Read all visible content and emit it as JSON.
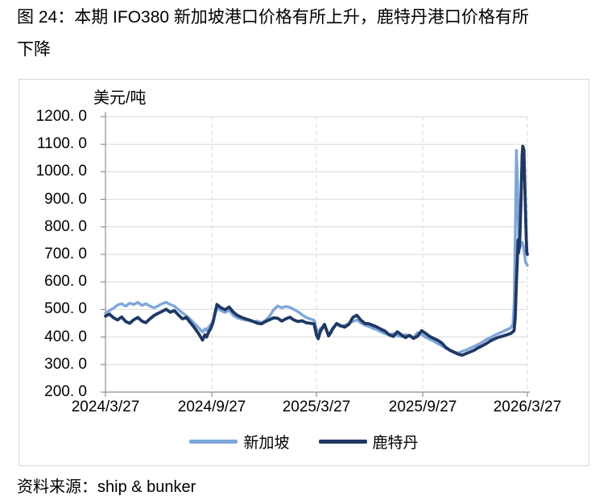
{
  "figure": {
    "title_line1": "图 24：本期 IFO380 新加坡港口价格有所上升，鹿特丹港口价格有所",
    "title_line2": "下降",
    "source": "资料来源：ship & bunker"
  },
  "chart_data": {
    "type": "line",
    "title": "本期 IFO380 新加坡港口价格有所上升，鹿特丹港口价格有所下降",
    "ylabel": "美元/吨",
    "xlabel": "",
    "ylim": [
      200,
      1200
    ],
    "y_tick_values": [
      200,
      300,
      400,
      500,
      600,
      700,
      800,
      900,
      1000,
      1100,
      1200
    ],
    "y_tick_labels": [
      "200. 0",
      "300. 0",
      "400. 0",
      "500. 0",
      "600. 0",
      "700. 0",
      "800. 0",
      "900. 0",
      "1000. 0",
      "1100. 0",
      "1200. 0"
    ],
    "x_tick_days": [
      0,
      184,
      365,
      549,
      730
    ],
    "x_tick_labels": [
      "2024/3/27",
      "2024/9/27",
      "2025/3/27",
      "2025/9/27",
      "2026/3/27"
    ],
    "x_range_days": [
      0,
      730
    ],
    "grid": {
      "horizontal": true,
      "vertical": "dashed"
    },
    "legend_position": "bottom",
    "colors": {
      "grid": "#d9d9d9",
      "axis": "#8f8f8f",
      "text": "#000000"
    },
    "series": [
      {
        "name": "新加坡",
        "color": "#7EA6D8",
        "width": 3.4,
        "points": [
          [
            0,
            487
          ],
          [
            7,
            496
          ],
          [
            14,
            505
          ],
          [
            21,
            516
          ],
          [
            28,
            521
          ],
          [
            35,
            512
          ],
          [
            42,
            523
          ],
          [
            49,
            518
          ],
          [
            56,
            526
          ],
          [
            63,
            515
          ],
          [
            70,
            521
          ],
          [
            77,
            512
          ],
          [
            84,
            506
          ],
          [
            91,
            513
          ],
          [
            98,
            521
          ],
          [
            105,
            526
          ],
          [
            112,
            518
          ],
          [
            119,
            512
          ],
          [
            126,
            500
          ],
          [
            133,
            488
          ],
          [
            140,
            477
          ],
          [
            147,
            464
          ],
          [
            154,
            449
          ],
          [
            161,
            434
          ],
          [
            168,
            418
          ],
          [
            172,
            430
          ],
          [
            175,
            424
          ],
          [
            179,
            438
          ],
          [
            182,
            444
          ],
          [
            186,
            458
          ],
          [
            190,
            485
          ],
          [
            193,
            506
          ],
          [
            200,
            496
          ],
          [
            207,
            489
          ],
          [
            214,
            497
          ],
          [
            221,
            479
          ],
          [
            228,
            469
          ],
          [
            235,
            465
          ],
          [
            242,
            462
          ],
          [
            249,
            459
          ],
          [
            256,
            455
          ],
          [
            263,
            458
          ],
          [
            270,
            452
          ],
          [
            277,
            461
          ],
          [
            284,
            476
          ],
          [
            291,
            499
          ],
          [
            298,
            513
          ],
          [
            305,
            506
          ],
          [
            312,
            511
          ],
          [
            319,
            508
          ],
          [
            326,
            500
          ],
          [
            333,
            492
          ],
          [
            340,
            481
          ],
          [
            347,
            471
          ],
          [
            354,
            466
          ],
          [
            361,
            461
          ],
          [
            365,
            430
          ],
          [
            368,
            415
          ],
          [
            372,
            431
          ],
          [
            379,
            441
          ],
          [
            386,
            409
          ],
          [
            390,
            420
          ],
          [
            393,
            433
          ],
          [
            400,
            446
          ],
          [
            407,
            438
          ],
          [
            414,
            443
          ],
          [
            421,
            449
          ],
          [
            428,
            456
          ],
          [
            435,
            462
          ],
          [
            442,
            451
          ],
          [
            449,
            443
          ],
          [
            456,
            438
          ],
          [
            463,
            431
          ],
          [
            470,
            426
          ],
          [
            477,
            418
          ],
          [
            484,
            412
          ],
          [
            491,
            408
          ],
          [
            498,
            413
          ],
          [
            505,
            405
          ],
          [
            512,
            401
          ],
          [
            519,
            409
          ],
          [
            526,
            403
          ],
          [
            533,
            398
          ],
          [
            540,
            416
          ],
          [
            547,
            409
          ],
          [
            554,
            399
          ],
          [
            561,
            392
          ],
          [
            568,
            385
          ],
          [
            575,
            376
          ],
          [
            582,
            368
          ],
          [
            589,
            359
          ],
          [
            596,
            352
          ],
          [
            603,
            346
          ],
          [
            610,
            342
          ],
          [
            617,
            348
          ],
          [
            624,
            353
          ],
          [
            631,
            359
          ],
          [
            638,
            366
          ],
          [
            645,
            373
          ],
          [
            652,
            381
          ],
          [
            659,
            391
          ],
          [
            666,
            398
          ],
          [
            673,
            406
          ],
          [
            680,
            413
          ],
          [
            687,
            419
          ],
          [
            694,
            426
          ],
          [
            701,
            433
          ],
          [
            705,
            446
          ],
          [
            707,
            520
          ],
          [
            709,
            760
          ],
          [
            711,
            1078
          ],
          [
            713,
            960
          ],
          [
            715,
            745
          ],
          [
            717,
            722
          ],
          [
            719,
            736
          ],
          [
            721,
            745
          ],
          [
            723,
            730
          ],
          [
            725,
            700
          ],
          [
            727,
            672
          ],
          [
            730,
            660
          ]
        ]
      },
      {
        "name": "鹿特丹",
        "color": "#1F3864",
        "width": 3.8,
        "points": [
          [
            0,
            476
          ],
          [
            7,
            483
          ],
          [
            14,
            470
          ],
          [
            21,
            462
          ],
          [
            28,
            473
          ],
          [
            35,
            456
          ],
          [
            42,
            450
          ],
          [
            49,
            463
          ],
          [
            56,
            471
          ],
          [
            63,
            458
          ],
          [
            70,
            452
          ],
          [
            77,
            466
          ],
          [
            84,
            478
          ],
          [
            91,
            486
          ],
          [
            98,
            493
          ],
          [
            105,
            501
          ],
          [
            112,
            490
          ],
          [
            119,
            496
          ],
          [
            126,
            481
          ],
          [
            133,
            466
          ],
          [
            140,
            471
          ],
          [
            147,
            452
          ],
          [
            154,
            434
          ],
          [
            161,
            413
          ],
          [
            168,
            389
          ],
          [
            172,
            408
          ],
          [
            175,
            400
          ],
          [
            179,
            420
          ],
          [
            182,
            430
          ],
          [
            186,
            452
          ],
          [
            190,
            492
          ],
          [
            193,
            518
          ],
          [
            200,
            506
          ],
          [
            207,
            499
          ],
          [
            214,
            509
          ],
          [
            221,
            491
          ],
          [
            228,
            479
          ],
          [
            235,
            472
          ],
          [
            242,
            466
          ],
          [
            249,
            462
          ],
          [
            256,
            456
          ],
          [
            263,
            450
          ],
          [
            270,
            448
          ],
          [
            277,
            456
          ],
          [
            284,
            463
          ],
          [
            291,
            470
          ],
          [
            298,
            468
          ],
          [
            305,
            458
          ],
          [
            312,
            466
          ],
          [
            319,
            472
          ],
          [
            326,
            462
          ],
          [
            333,
            456
          ],
          [
            340,
            459
          ],
          [
            347,
            452
          ],
          [
            354,
            450
          ],
          [
            361,
            448
          ],
          [
            365,
            408
          ],
          [
            368,
            394
          ],
          [
            372,
            421
          ],
          [
            379,
            446
          ],
          [
            386,
            404
          ],
          [
            390,
            416
          ],
          [
            393,
            429
          ],
          [
            400,
            449
          ],
          [
            407,
            441
          ],
          [
            414,
            436
          ],
          [
            421,
            446
          ],
          [
            428,
            471
          ],
          [
            435,
            479
          ],
          [
            442,
            461
          ],
          [
            449,
            449
          ],
          [
            456,
            448
          ],
          [
            463,
            442
          ],
          [
            470,
            436
          ],
          [
            477,
            428
          ],
          [
            484,
            421
          ],
          [
            491,
            408
          ],
          [
            498,
            402
          ],
          [
            505,
            419
          ],
          [
            512,
            408
          ],
          [
            519,
            398
          ],
          [
            526,
            406
          ],
          [
            533,
            395
          ],
          [
            540,
            403
          ],
          [
            547,
            423
          ],
          [
            554,
            413
          ],
          [
            561,
            402
          ],
          [
            568,
            395
          ],
          [
            575,
            388
          ],
          [
            582,
            378
          ],
          [
            589,
            362
          ],
          [
            596,
            352
          ],
          [
            603,
            345
          ],
          [
            610,
            338
          ],
          [
            617,
            334
          ],
          [
            624,
            340
          ],
          [
            631,
            346
          ],
          [
            638,
            352
          ],
          [
            645,
            361
          ],
          [
            652,
            368
          ],
          [
            659,
            376
          ],
          [
            666,
            386
          ],
          [
            673,
            393
          ],
          [
            680,
            399
          ],
          [
            687,
            403
          ],
          [
            694,
            408
          ],
          [
            701,
            413
          ],
          [
            705,
            419
          ],
          [
            707,
            424
          ],
          [
            709,
            470
          ],
          [
            711,
            600
          ],
          [
            713,
            700
          ],
          [
            714,
            752
          ],
          [
            715,
            707
          ],
          [
            716,
            730
          ],
          [
            717,
            762
          ],
          [
            719,
            900
          ],
          [
            721,
            1060
          ],
          [
            722,
            1093
          ],
          [
            724,
            1080
          ],
          [
            726,
            920
          ],
          [
            728,
            760
          ],
          [
            729,
            708
          ],
          [
            730,
            700
          ]
        ]
      }
    ]
  }
}
